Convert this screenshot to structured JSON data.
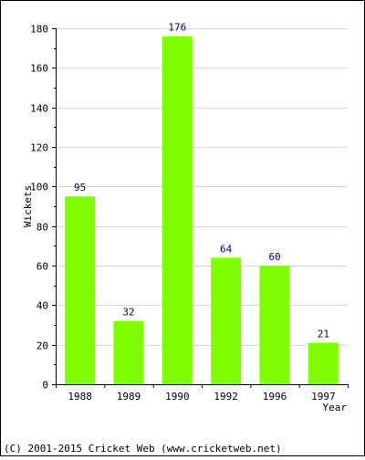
{
  "chart_data": {
    "type": "bar",
    "categories": [
      "1988",
      "1989",
      "1990",
      "1992",
      "1996",
      "1997"
    ],
    "values": [
      95,
      32,
      176,
      64,
      60,
      21
    ],
    "title": "",
    "xlabel": "Year",
    "ylabel": "Wickets",
    "ylim": [
      0,
      180
    ],
    "yticks": [
      0,
      20,
      40,
      60,
      80,
      100,
      120,
      140,
      160,
      180
    ],
    "grid": true,
    "legend": "none",
    "colors": {
      "bar": "#80FF00",
      "value_label": "#000080",
      "grid": "#d8d8d8",
      "axis": "#000000"
    }
  },
  "footer": {
    "copyright": "(C) 2001-2015 Cricket Web (www.cricketweb.net)"
  }
}
